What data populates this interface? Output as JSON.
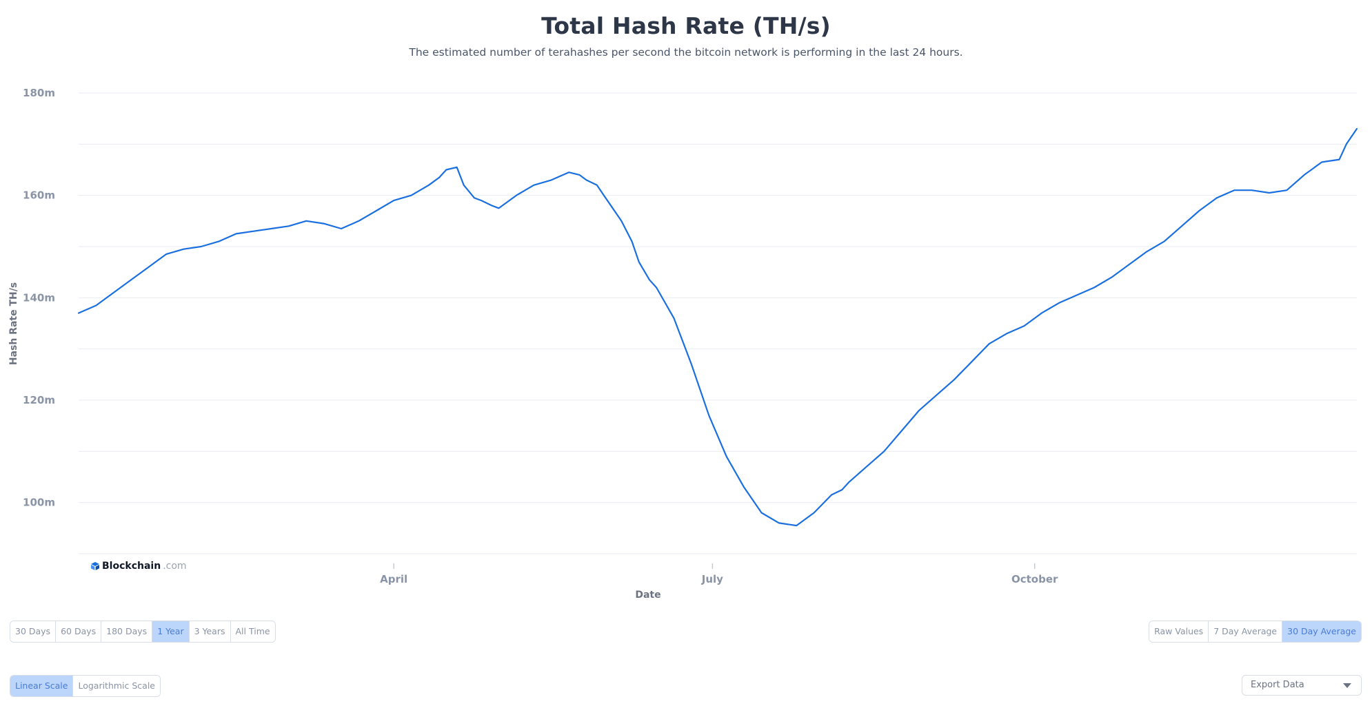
{
  "header": {
    "title": "Total Hash Rate (TH/s)",
    "subtitle": "The estimated number of terahashes per second the bitcoin network is performing in the last 24 hours."
  },
  "brand": {
    "name": "Blockchain",
    "domain": ".com"
  },
  "range_buttons": [
    {
      "label": "30 Days",
      "active": false
    },
    {
      "label": "60 Days",
      "active": false
    },
    {
      "label": "180 Days",
      "active": false
    },
    {
      "label": "1 Year",
      "active": true
    },
    {
      "label": "3 Years",
      "active": false
    },
    {
      "label": "All Time",
      "active": false
    }
  ],
  "average_buttons": [
    {
      "label": "Raw Values",
      "active": false
    },
    {
      "label": "7 Day Average",
      "active": false
    },
    {
      "label": "30 Day Average",
      "active": true
    }
  ],
  "scale_buttons": [
    {
      "label": "Linear Scale",
      "active": true
    },
    {
      "label": "Logarithmic Scale",
      "active": false
    }
  ],
  "export": {
    "label": "Export Data",
    "icon": "chevron-down-icon"
  },
  "colors": {
    "line": "#1a6fe0",
    "grid": "#e8ebf0",
    "active_button": "#bcd6fb"
  },
  "chart_data": {
    "type": "line",
    "xlabel": "Date",
    "ylabel": "Hash Rate TH/s",
    "ylim": [
      90,
      180
    ],
    "y_ticks": [
      100,
      120,
      140,
      160,
      180
    ],
    "y_tick_labels": [
      "100m",
      "120m",
      "140m",
      "160m",
      "180m"
    ],
    "x_range_days": [
      0,
      365
    ],
    "x_ticks": [
      {
        "day": 90,
        "label": "April"
      },
      {
        "day": 181,
        "label": "July"
      },
      {
        "day": 273,
        "label": "October"
      }
    ],
    "grid": true,
    "legend": "none",
    "series": [
      {
        "x": [
          0,
          5,
          10,
          15,
          20,
          25,
          30,
          35,
          40,
          45,
          50,
          55,
          60,
          65,
          70,
          75,
          80,
          85,
          90,
          95,
          100,
          103,
          105,
          108,
          110,
          113,
          115,
          118,
          120,
          125,
          130,
          135,
          140,
          143,
          145,
          148,
          150,
          153,
          155,
          158,
          160,
          163,
          165,
          170,
          175,
          180,
          185,
          190,
          195,
          200,
          205,
          210,
          215,
          218,
          220,
          225,
          230,
          235,
          240,
          245,
          250,
          255,
          260,
          265,
          270,
          275,
          280,
          285,
          290,
          295,
          300,
          305,
          310,
          315,
          320,
          325,
          330,
          335,
          340,
          345,
          350,
          355,
          360,
          362,
          365
        ],
        "values": [
          137,
          138.5,
          141,
          143.5,
          146,
          148.5,
          149.5,
          150,
          151,
          152.5,
          153,
          153.5,
          154,
          155,
          154.5,
          153.5,
          155,
          157,
          159,
          160,
          162,
          163.5,
          165,
          165.5,
          162,
          159.5,
          159,
          158,
          157.5,
          160,
          162,
          163,
          164.5,
          164,
          163,
          162,
          160,
          157,
          155,
          151,
          147,
          143.5,
          142,
          136,
          127,
          117,
          109,
          103,
          98,
          96,
          95.5,
          98,
          101.5,
          102.5,
          104,
          107,
          110,
          114,
          118,
          121,
          124,
          127.5,
          131,
          133,
          134.5,
          137,
          139,
          140.5,
          142,
          144,
          146.5,
          149,
          151,
          154,
          157,
          159.5,
          161,
          161,
          160.5,
          161,
          164,
          166.5,
          167,
          170,
          173
        ]
      }
    ]
  }
}
